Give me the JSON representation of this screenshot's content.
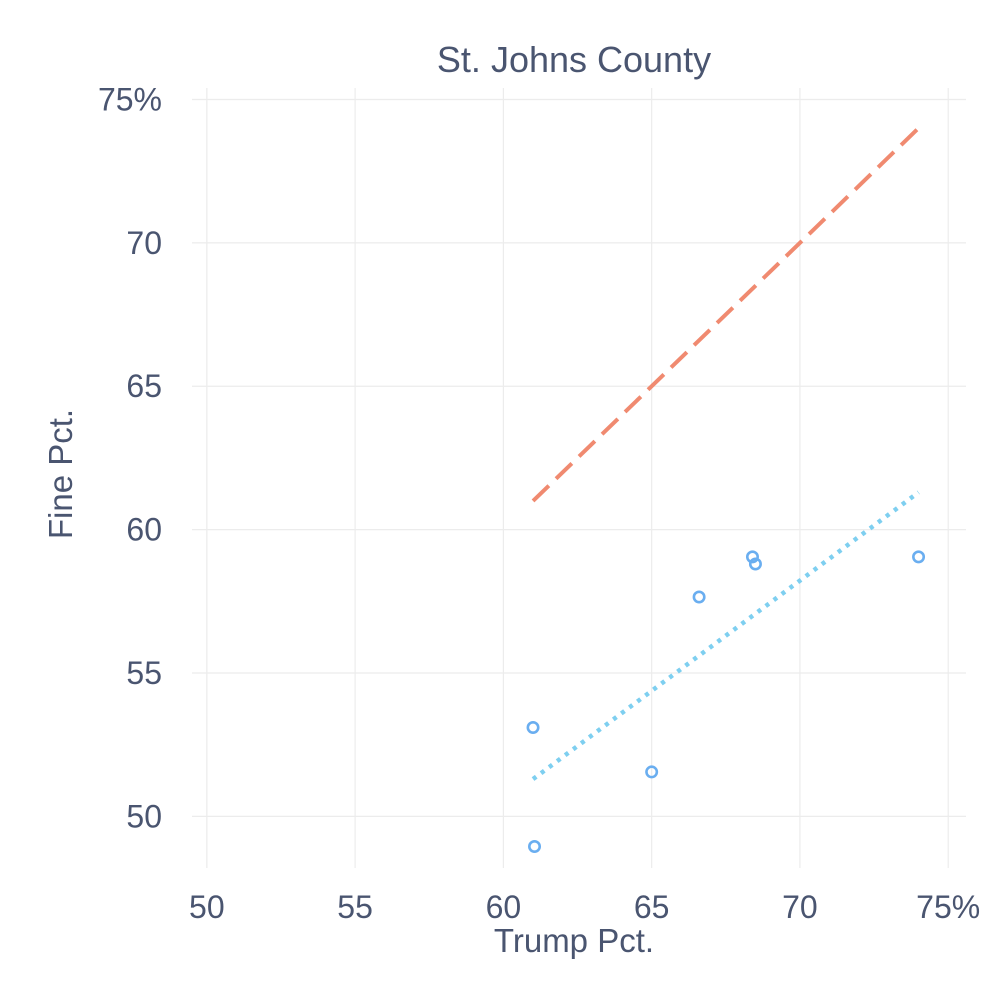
{
  "chart_data": {
    "type": "scatter",
    "title": "St. Johns County",
    "xlabel": "Trump Pct.",
    "ylabel": "Fine Pct.",
    "xlim": [
      49.5,
      75.6
    ],
    "ylim": [
      48.2,
      75.4
    ],
    "x_ticks": [
      50,
      55,
      60,
      65,
      70,
      75
    ],
    "x_tick_labels": [
      "50",
      "55",
      "60",
      "65",
      "70",
      "75%"
    ],
    "y_ticks": [
      50,
      55,
      60,
      65,
      70,
      75
    ],
    "y_tick_labels": [
      "50",
      "55",
      "60",
      "65",
      "70",
      "75%"
    ],
    "grid": true,
    "legend": "none",
    "colors": {
      "points": "#6aaef0",
      "parity_line": "#f08a70",
      "fit_line": "#7ecff0"
    },
    "points": [
      {
        "x": 61.0,
        "y": 53.1
      },
      {
        "x": 61.05,
        "y": 48.95
      },
      {
        "x": 65.0,
        "y": 51.55
      },
      {
        "x": 66.6,
        "y": 57.65
      },
      {
        "x": 68.4,
        "y": 59.05
      },
      {
        "x": 68.5,
        "y": 58.8
      },
      {
        "x": 74.0,
        "y": 59.05
      }
    ],
    "lines": [
      {
        "style": "dashed",
        "color_key": "parity_line",
        "x": [
          61.0,
          74.0
        ],
        "y": [
          61.0,
          74.0
        ]
      },
      {
        "style": "dotted",
        "color_key": "fit_line",
        "x": [
          61.0,
          74.0
        ],
        "y": [
          51.3,
          61.3
        ]
      }
    ]
  }
}
